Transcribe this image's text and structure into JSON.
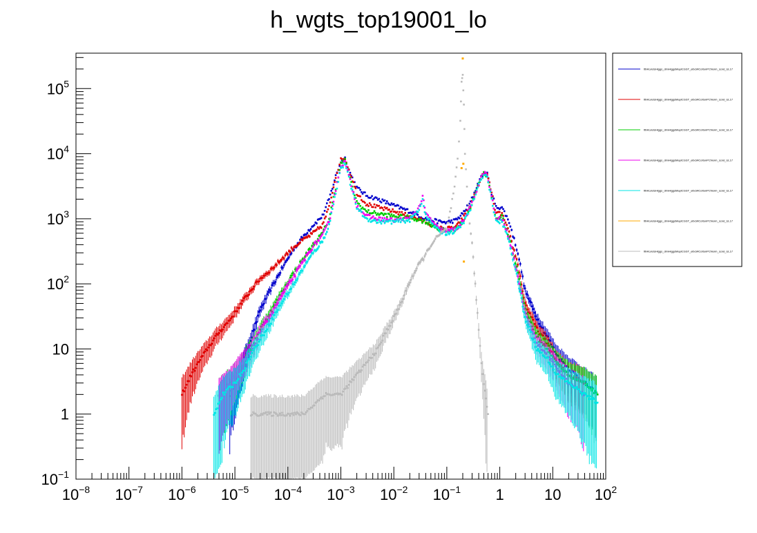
{
  "chart_data": {
    "type": "scatter",
    "title": "h_wgts_top19001_lo",
    "x_scale": "log",
    "y_scale": "log",
    "xlim": [
      1e-08,
      100
    ],
    "ylim": [
      0.1,
      350000
    ],
    "grid": false,
    "legend_placement": "right",
    "x_ticks": [
      {
        "value": 1e-08,
        "base": "10",
        "exp": "−8"
      },
      {
        "value": 1e-07,
        "base": "10",
        "exp": "−7"
      },
      {
        "value": 1e-06,
        "base": "10",
        "exp": "−6"
      },
      {
        "value": 1e-05,
        "base": "10",
        "exp": "−5"
      },
      {
        "value": 0.0001,
        "base": "10",
        "exp": "−4"
      },
      {
        "value": 0.001,
        "base": "10",
        "exp": "−3"
      },
      {
        "value": 0.01,
        "base": "10",
        "exp": "−2"
      },
      {
        "value": 0.1,
        "base": "10",
        "exp": "−1"
      },
      {
        "value": 1,
        "base": "1",
        "exp": ""
      },
      {
        "value": 10,
        "base": "10",
        "exp": ""
      },
      {
        "value": 100,
        "base": "10",
        "exp": "2"
      }
    ],
    "y_ticks": [
      {
        "value": 0.1,
        "base": "10",
        "exp": "−1"
      },
      {
        "value": 1,
        "base": "1",
        "exp": ""
      },
      {
        "value": 10,
        "base": "10",
        "exp": ""
      },
      {
        "value": 100,
        "base": "10",
        "exp": "2"
      },
      {
        "value": 1000,
        "base": "10",
        "exp": "3"
      },
      {
        "value": 10000,
        "base": "10",
        "exp": "4"
      },
      {
        "value": 100000,
        "base": "10",
        "exp": "5"
      }
    ],
    "series": [
      {
        "color": "#0000cc",
        "label": "tttHtoJetsHiggs_dimHiggsMapICGST_elbcWCottonPCNorm_scnd_UL17",
        "points": [
          [
            8e-06,
            2
          ],
          [
            1.2e-05,
            4
          ],
          [
            1.6e-05,
            8
          ],
          [
            2.2e-05,
            18
          ],
          [
            3e-05,
            40
          ],
          [
            5e-05,
            90
          ],
          [
            8e-05,
            180
          ],
          [
            0.00013,
            350
          ],
          [
            0.0002,
            550
          ],
          [
            0.0003,
            800
          ],
          [
            0.00045,
            1100
          ],
          [
            0.0006,
            2000
          ],
          [
            0.0008,
            4500
          ],
          [
            0.001,
            7500
          ],
          [
            0.0012,
            8500
          ],
          [
            0.0015,
            5000
          ],
          [
            0.002,
            3000
          ],
          [
            0.003,
            2300
          ],
          [
            0.005,
            2000
          ],
          [
            0.01,
            1600
          ],
          [
            0.02,
            1300
          ],
          [
            0.04,
            1000
          ],
          [
            0.07,
            900
          ],
          [
            0.1,
            880
          ],
          [
            0.15,
            950
          ],
          [
            0.2,
            1200
          ],
          [
            0.28,
            1800
          ],
          [
            0.35,
            2800
          ],
          [
            0.42,
            4000
          ],
          [
            0.5,
            5000
          ],
          [
            0.58,
            4800
          ],
          [
            0.7,
            2500
          ],
          [
            0.85,
            1500
          ],
          [
            1.1,
            1500
          ],
          [
            1.5,
            900
          ],
          [
            2.2,
            300
          ],
          [
            3,
            80
          ],
          [
            5,
            30
          ],
          [
            8,
            15
          ],
          [
            12,
            8
          ],
          [
            20,
            5
          ],
          [
            40,
            3
          ],
          [
            70,
            2
          ]
        ]
      },
      {
        "color": "#e00000",
        "label": "tttHtoJetsHiggs_dimHiggsMapICGST_elbcWCottonPCNorm_scnd_UL17",
        "points": [
          [
            1e-06,
            2
          ],
          [
            1.5e-06,
            4
          ],
          [
            2e-06,
            6
          ],
          [
            3e-06,
            10
          ],
          [
            5e-06,
            18
          ],
          [
            8e-06,
            28
          ],
          [
            1.2e-05,
            45
          ],
          [
            2e-05,
            80
          ],
          [
            3e-05,
            120
          ],
          [
            5e-05,
            170
          ],
          [
            8e-05,
            250
          ],
          [
            0.00013,
            370
          ],
          [
            0.0002,
            480
          ],
          [
            0.0003,
            600
          ],
          [
            0.00045,
            800
          ],
          [
            0.0006,
            1500
          ],
          [
            0.0008,
            4500
          ],
          [
            0.001,
            8000
          ],
          [
            0.0012,
            8500
          ],
          [
            0.0015,
            5000
          ],
          [
            0.002,
            2500
          ],
          [
            0.003,
            1700
          ],
          [
            0.005,
            1500
          ],
          [
            0.01,
            1300
          ],
          [
            0.02,
            1100
          ],
          [
            0.04,
            900
          ],
          [
            0.07,
            720
          ],
          [
            0.1,
            700
          ],
          [
            0.15,
            750
          ],
          [
            0.2,
            1000
          ],
          [
            0.28,
            1600
          ],
          [
            0.35,
            2500
          ],
          [
            0.42,
            3800
          ],
          [
            0.5,
            5000
          ],
          [
            0.58,
            4800
          ],
          [
            0.7,
            2500
          ],
          [
            0.85,
            1200
          ],
          [
            1.1,
            1200
          ],
          [
            1.5,
            600
          ],
          [
            2.2,
            200
          ],
          [
            3,
            50
          ],
          [
            5,
            20
          ],
          [
            8,
            12
          ],
          [
            12,
            6
          ],
          [
            20,
            4
          ],
          [
            40,
            3
          ]
        ]
      },
      {
        "color": "#00cc00",
        "label": "tttHtoJetsHiggs_dimHiggsMapICGST_elbcWCottonPCNorm_scnd_UL17",
        "points": [
          [
            5e-06,
            2
          ],
          [
            8e-06,
            3
          ],
          [
            1.2e-05,
            5
          ],
          [
            2e-05,
            10
          ],
          [
            3e-05,
            20
          ],
          [
            5e-05,
            40
          ],
          [
            8e-05,
            80
          ],
          [
            0.00013,
            150
          ],
          [
            0.0002,
            250
          ],
          [
            0.0003,
            400
          ],
          [
            0.00045,
            600
          ],
          [
            0.0006,
            1000
          ],
          [
            0.0008,
            3000
          ],
          [
            0.001,
            7000
          ],
          [
            0.0012,
            8000
          ],
          [
            0.0015,
            4000
          ],
          [
            0.002,
            1800
          ],
          [
            0.003,
            1300
          ],
          [
            0.005,
            1200
          ],
          [
            0.01,
            1100
          ],
          [
            0.02,
            1050
          ],
          [
            0.04,
            900
          ],
          [
            0.07,
            700
          ],
          [
            0.1,
            650
          ],
          [
            0.15,
            700
          ],
          [
            0.2,
            900
          ],
          [
            0.28,
            1500
          ],
          [
            0.35,
            2500
          ],
          [
            0.42,
            3800
          ],
          [
            0.5,
            5000
          ],
          [
            0.58,
            4600
          ],
          [
            0.7,
            2200
          ],
          [
            0.85,
            1000
          ],
          [
            1.1,
            1100
          ],
          [
            1.5,
            500
          ],
          [
            2.2,
            150
          ],
          [
            3,
            40
          ],
          [
            5,
            15
          ],
          [
            8,
            10
          ],
          [
            12,
            6
          ],
          [
            20,
            4
          ],
          [
            40,
            3
          ],
          [
            70,
            2
          ]
        ]
      },
      {
        "color": "#ee00ee",
        "label": "tttHtoJetsHiggs_dimHiggsMapICGST_elbcWCottonPCNorm_scnd_UL17",
        "points": [
          [
            5e-06,
            2
          ],
          [
            8e-06,
            3
          ],
          [
            1.2e-05,
            5
          ],
          [
            2e-05,
            9
          ],
          [
            3e-05,
            18
          ],
          [
            5e-05,
            35
          ],
          [
            8e-05,
            70
          ],
          [
            0.00013,
            130
          ],
          [
            0.0002,
            230
          ],
          [
            0.0003,
            380
          ],
          [
            0.00045,
            550
          ],
          [
            0.0006,
            900
          ],
          [
            0.0008,
            2800
          ],
          [
            0.001,
            6500
          ],
          [
            0.0012,
            7500
          ],
          [
            0.0015,
            3800
          ],
          [
            0.002,
            1600
          ],
          [
            0.003,
            1100
          ],
          [
            0.005,
            1000
          ],
          [
            0.01,
            950
          ],
          [
            0.02,
            1000
          ],
          [
            0.03,
            1500
          ],
          [
            0.035,
            2200
          ],
          [
            0.04,
            1200
          ],
          [
            0.07,
            700
          ],
          [
            0.1,
            650
          ],
          [
            0.15,
            700
          ],
          [
            0.2,
            900
          ],
          [
            0.28,
            1500
          ],
          [
            0.35,
            2500
          ],
          [
            0.42,
            3800
          ],
          [
            0.5,
            5200
          ],
          [
            0.58,
            4600
          ],
          [
            0.7,
            2200
          ],
          [
            0.85,
            1000
          ],
          [
            1.1,
            1000
          ],
          [
            1.5,
            500
          ],
          [
            2.2,
            130
          ],
          [
            3,
            35
          ],
          [
            5,
            12
          ],
          [
            8,
            8
          ],
          [
            12,
            5
          ],
          [
            20,
            3
          ],
          [
            40,
            2
          ]
        ]
      },
      {
        "color": "#00e5e5",
        "label": "tttHtoJetsHiggs_dimHiggsMapICGST_elbcWCottonPCNorm_scnd_UL17",
        "points": [
          [
            4e-06,
            1
          ],
          [
            6e-06,
            2
          ],
          [
            1e-05,
            3
          ],
          [
            1.5e-05,
            5
          ],
          [
            2e-05,
            8
          ],
          [
            3e-05,
            14
          ],
          [
            5e-05,
            28
          ],
          [
            8e-05,
            55
          ],
          [
            0.00013,
            100
          ],
          [
            0.0002,
            180
          ],
          [
            0.0003,
            300
          ],
          [
            0.00045,
            450
          ],
          [
            0.0006,
            800
          ],
          [
            0.0008,
            2500
          ],
          [
            0.001,
            6000
          ],
          [
            0.0012,
            7000
          ],
          [
            0.0015,
            3500
          ],
          [
            0.002,
            1500
          ],
          [
            0.003,
            1000
          ],
          [
            0.005,
            900
          ],
          [
            0.01,
            900
          ],
          [
            0.02,
            950
          ],
          [
            0.03,
            1400
          ],
          [
            0.035,
            2000
          ],
          [
            0.04,
            1100
          ],
          [
            0.07,
            650
          ],
          [
            0.1,
            600
          ],
          [
            0.15,
            650
          ],
          [
            0.2,
            850
          ],
          [
            0.28,
            1400
          ],
          [
            0.35,
            2400
          ],
          [
            0.42,
            3600
          ],
          [
            0.5,
            5000
          ],
          [
            0.58,
            4400
          ],
          [
            0.7,
            2000
          ],
          [
            0.85,
            900
          ],
          [
            1.1,
            900
          ],
          [
            1.5,
            450
          ],
          [
            2.2,
            110
          ],
          [
            3,
            30
          ],
          [
            5,
            10
          ],
          [
            8,
            7
          ],
          [
            12,
            4
          ],
          [
            20,
            3
          ],
          [
            40,
            2
          ],
          [
            70,
            1.5
          ]
        ]
      },
      {
        "color": "#ffaa00",
        "label": "tttHtoJetsHiggs_dimHiggsMapICGST_elbcWCottonPCNorm_scnd_UL17",
        "points": [
          [
            0.2,
            290000
          ],
          [
            0.19,
            6000
          ],
          [
            0.205,
            7000
          ],
          [
            0.21,
            220
          ]
        ]
      },
      {
        "color": "#bbbbbb",
        "label": "tttHtoJetsHiggs_dimHiggsMapICGST_elbcWCottonPCNorm_scnd_UL17",
        "points": [
          [
            2e-05,
            1
          ],
          [
            5e-05,
            1
          ],
          [
            0.0001,
            1
          ],
          [
            0.0002,
            1
          ],
          [
            0.0005,
            2
          ],
          [
            0.001,
            2
          ],
          [
            0.002,
            4
          ],
          [
            0.003,
            6
          ],
          [
            0.005,
            10
          ],
          [
            0.007,
            18
          ],
          [
            0.01,
            30
          ],
          [
            0.015,
            60
          ],
          [
            0.02,
            110
          ],
          [
            0.03,
            200
          ],
          [
            0.04,
            280
          ],
          [
            0.05,
            400
          ],
          [
            0.07,
            550
          ],
          [
            0.1,
            700
          ],
          [
            0.12,
            1500
          ],
          [
            0.14,
            3000
          ],
          [
            0.16,
            8000
          ],
          [
            0.18,
            30000
          ],
          [
            0.19,
            130000
          ],
          [
            0.2,
            160000
          ],
          [
            0.21,
            60000
          ],
          [
            0.22,
            10000
          ],
          [
            0.24,
            3000
          ],
          [
            0.27,
            900
          ],
          [
            0.3,
            400
          ],
          [
            0.33,
            150
          ],
          [
            0.36,
            60
          ],
          [
            0.4,
            20
          ],
          [
            0.45,
            6
          ],
          [
            0.5,
            3
          ],
          [
            0.6,
            1
          ]
        ]
      }
    ]
  }
}
